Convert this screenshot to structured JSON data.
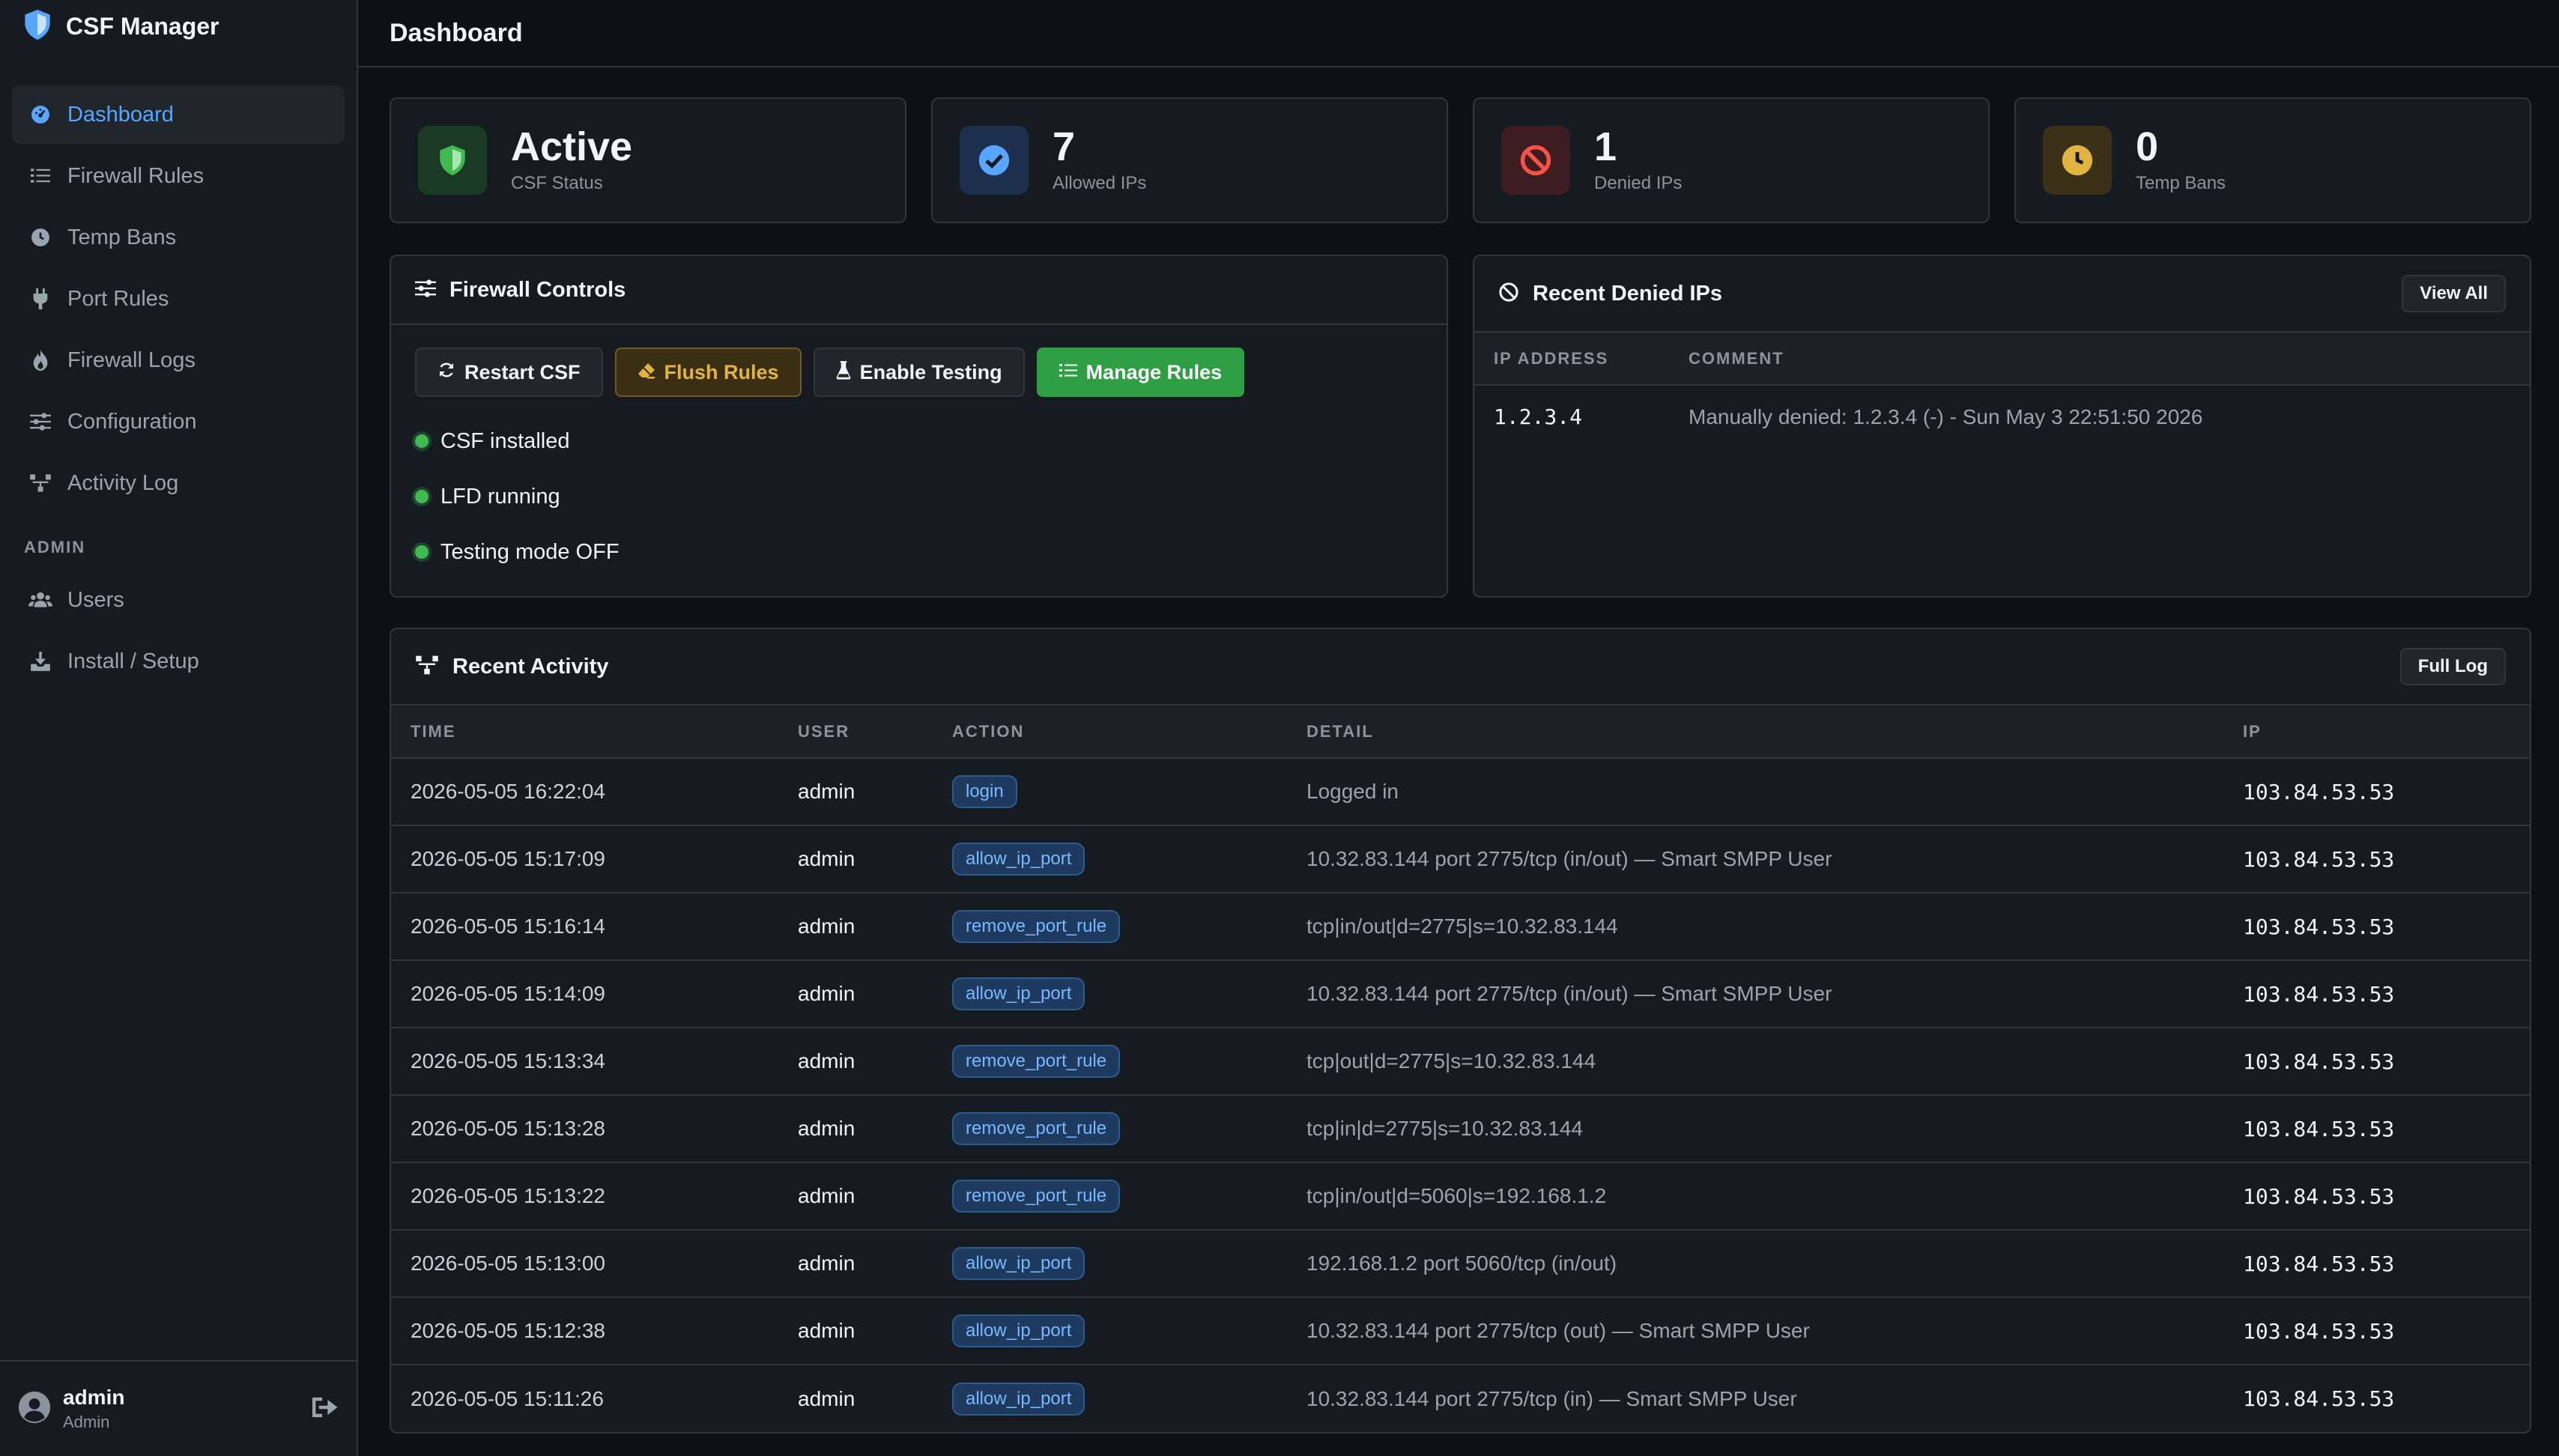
{
  "app": {
    "name": "CSF Manager"
  },
  "sidebar": {
    "items": [
      {
        "label": "Dashboard",
        "icon": "dashboard-icon",
        "active": true
      },
      {
        "label": "Firewall Rules",
        "icon": "list-icon"
      },
      {
        "label": "Temp Bans",
        "icon": "clock-icon"
      },
      {
        "label": "Port Rules",
        "icon": "plug-icon"
      },
      {
        "label": "Firewall Logs",
        "icon": "fire-icon"
      },
      {
        "label": "Configuration",
        "icon": "sliders-icon"
      },
      {
        "label": "Activity Log",
        "icon": "network-icon"
      }
    ],
    "admin_section_label": "ADMIN",
    "admin_items": [
      {
        "label": "Users",
        "icon": "users-icon"
      },
      {
        "label": "Install / Setup",
        "icon": "download-icon"
      }
    ],
    "footer": {
      "user_name": "admin",
      "user_role": "Admin"
    }
  },
  "header": {
    "title": "Dashboard"
  },
  "stats": [
    {
      "value": "Active",
      "label": "CSF Status",
      "icon": "shield-icon",
      "color": "#3fb950"
    },
    {
      "value": "7",
      "label": "Allowed IPs",
      "icon": "check-circle-icon",
      "color": "#58a6ff"
    },
    {
      "value": "1",
      "label": "Denied IPs",
      "icon": "ban-icon",
      "color": "#f85149"
    },
    {
      "value": "0",
      "label": "Temp Bans",
      "icon": "clock-icon",
      "color": "#e3b341"
    }
  ],
  "firewall_controls": {
    "title": "Firewall Controls",
    "buttons": {
      "restart": "Restart CSF",
      "flush": "Flush Rules",
      "testing": "Enable Testing",
      "manage": "Manage Rules"
    },
    "statuses": [
      "CSF installed",
      "LFD running",
      "Testing mode OFF"
    ]
  },
  "recent_denied": {
    "title": "Recent Denied IPs",
    "view_all": "View All",
    "columns": [
      "IP ADDRESS",
      "COMMENT"
    ],
    "rows": [
      {
        "ip": "1.2.3.4",
        "comment": "Manually denied: 1.2.3.4 (-) - Sun May 3 22:51:50 2026"
      }
    ]
  },
  "recent_activity": {
    "title": "Recent Activity",
    "full_log": "Full Log",
    "columns": [
      "TIME",
      "USER",
      "ACTION",
      "DETAIL",
      "IP"
    ],
    "rows": [
      {
        "time": "2026-05-05 16:22:04",
        "user": "admin",
        "action": "login",
        "detail": "Logged in",
        "ip": "103.84.53.53"
      },
      {
        "time": "2026-05-05 15:17:09",
        "user": "admin",
        "action": "allow_ip_port",
        "detail": "10.32.83.144 port 2775/tcp (in/out) — Smart SMPP User",
        "ip": "103.84.53.53"
      },
      {
        "time": "2026-05-05 15:16:14",
        "user": "admin",
        "action": "remove_port_rule",
        "detail": "tcp|in/out|d=2775|s=10.32.83.144",
        "ip": "103.84.53.53"
      },
      {
        "time": "2026-05-05 15:14:09",
        "user": "admin",
        "action": "allow_ip_port",
        "detail": "10.32.83.144 port 2775/tcp (in/out) — Smart SMPP User",
        "ip": "103.84.53.53"
      },
      {
        "time": "2026-05-05 15:13:34",
        "user": "admin",
        "action": "remove_port_rule",
        "detail": "tcp|out|d=2775|s=10.32.83.144",
        "ip": "103.84.53.53"
      },
      {
        "time": "2026-05-05 15:13:28",
        "user": "admin",
        "action": "remove_port_rule",
        "detail": "tcp|in|d=2775|s=10.32.83.144",
        "ip": "103.84.53.53"
      },
      {
        "time": "2026-05-05 15:13:22",
        "user": "admin",
        "action": "remove_port_rule",
        "detail": "tcp|in/out|d=5060|s=192.168.1.2",
        "ip": "103.84.53.53"
      },
      {
        "time": "2026-05-05 15:13:00",
        "user": "admin",
        "action": "allow_ip_port",
        "detail": "192.168.1.2 port 5060/tcp (in/out)",
        "ip": "103.84.53.53"
      },
      {
        "time": "2026-05-05 15:12:38",
        "user": "admin",
        "action": "allow_ip_port",
        "detail": "10.32.83.144 port 2775/tcp (out) — Smart SMPP User",
        "ip": "103.84.53.53"
      },
      {
        "time": "2026-05-05 15:11:26",
        "user": "admin",
        "action": "allow_ip_port",
        "detail": "10.32.83.144 port 2775/tcp (in) — Smart SMPP User",
        "ip": "103.84.53.53"
      }
    ]
  }
}
